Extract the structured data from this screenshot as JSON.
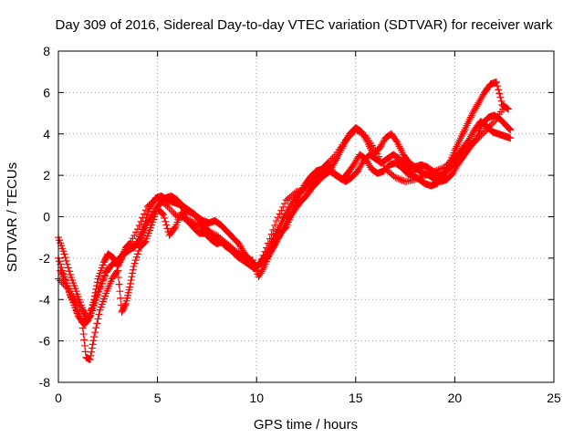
{
  "chart_data": {
    "type": "scatter",
    "title": "Day 309 of 2016, Sidereal Day-to-day VTEC variation (SDTVAR) for receiver wark",
    "xlabel": "GPS time / hours",
    "ylabel": "SDTVAR / TECUs",
    "xlim": [
      0,
      25
    ],
    "ylim": [
      -8,
      8
    ],
    "xticks": [
      0,
      5,
      10,
      15,
      20,
      25
    ],
    "yticks": [
      -8,
      -6,
      -4,
      -2,
      0,
      2,
      4,
      6,
      8
    ],
    "grid": true,
    "marker": "+",
    "color": "#ff0000",
    "series": [
      {
        "x": [
          0.0,
          0.3,
          0.6,
          0.9,
          1.2,
          1.4,
          1.6,
          1.8,
          2.0,
          2.3,
          2.5,
          2.8,
          3.0,
          3.2,
          3.4,
          3.6,
          3.8,
          4.0,
          4.3,
          4.6,
          4.9,
          5.2,
          5.5,
          5.8,
          6.1,
          6.4,
          6.7,
          7.0,
          7.3,
          7.6,
          7.9,
          8.2,
          8.5,
          8.8,
          9.1,
          9.4,
          9.7,
          10.0,
          10.3,
          10.6,
          10.9,
          11.2,
          11.5,
          11.8,
          12.1,
          12.4,
          12.7,
          13.0,
          13.3,
          13.6,
          13.9,
          14.2,
          14.5,
          14.8,
          15.1,
          15.4,
          15.7,
          16.0,
          16.3,
          16.6,
          16.9,
          17.2,
          17.5,
          17.8,
          18.1,
          18.4,
          18.7,
          19.0,
          19.3,
          19.6,
          19.9,
          20.2,
          20.5,
          20.8,
          21.1,
          21.4,
          21.7,
          22.0,
          22.3,
          22.6,
          22.8
        ],
        "y": [
          -1.0,
          -1.8,
          -2.8,
          -3.6,
          -4.4,
          -5.0,
          -4.8,
          -4.0,
          -3.0,
          -2.2,
          -1.8,
          -2.0,
          -2.4,
          -2.0,
          -1.5,
          -1.3,
          -1.5,
          -1.2,
          -0.5,
          0.4,
          0.9,
          1.0,
          0.8,
          0.7,
          0.6,
          0.3,
          0.2,
          0.0,
          -0.2,
          -0.3,
          -0.2,
          -0.4,
          -0.7,
          -1.0,
          -1.3,
          -1.8,
          -2.1,
          -2.4,
          -2.2,
          -1.9,
          -1.4,
          -0.8,
          -0.5,
          0.2,
          0.9,
          1.5,
          1.9,
          2.2,
          2.3,
          2.6,
          2.1,
          1.9,
          1.7,
          1.9,
          2.2,
          2.7,
          3.0,
          2.8,
          2.6,
          2.8,
          3.0,
          2.8,
          2.5,
          2.3,
          2.3,
          2.1,
          2.0,
          1.8,
          1.7,
          1.8,
          2.1,
          2.6,
          3.0,
          3.4,
          3.8,
          4.5,
          4.8,
          4.9,
          4.7,
          4.4,
          4.2
        ]
      },
      {
        "x": [
          0.1,
          0.4,
          0.7,
          1.0,
          1.3,
          1.5,
          1.8,
          2.1,
          2.4,
          2.7,
          3.0,
          3.3,
          3.6,
          3.9,
          4.2,
          4.5,
          4.8,
          5.1,
          5.4,
          5.7,
          6.0,
          6.3,
          6.6,
          6.9,
          7.2,
          7.5,
          7.8,
          8.1,
          8.4,
          8.7,
          9.0,
          9.3,
          9.6,
          9.9,
          10.2,
          10.5,
          10.8,
          11.1,
          11.4,
          11.7,
          12.0,
          12.3,
          12.6,
          12.9,
          13.2,
          13.5,
          13.8,
          14.1,
          14.4,
          14.7,
          15.0,
          15.3,
          15.6,
          15.9,
          16.2,
          16.5,
          16.8,
          17.1,
          17.4,
          17.7,
          18.0,
          18.3,
          18.6,
          18.9,
          19.2,
          19.5,
          19.8,
          20.1,
          20.4,
          20.7,
          21.0,
          21.3,
          21.6,
          21.9,
          22.2,
          22.5,
          22.8
        ],
        "y": [
          -2.6,
          -3.2,
          -4.0,
          -4.8,
          -5.2,
          -5.0,
          -4.3,
          -3.5,
          -2.7,
          -2.3,
          -2.1,
          -1.8,
          -1.6,
          -1.4,
          -1.0,
          -0.3,
          0.2,
          0.6,
          0.9,
          1.0,
          0.8,
          0.5,
          0.3,
          0.1,
          -0.3,
          -0.6,
          -0.9,
          -1.1,
          -1.4,
          -1.6,
          -1.9,
          -2.1,
          -2.3,
          -2.5,
          -2.2,
          -1.8,
          -1.2,
          -0.6,
          0.0,
          0.5,
          1.0,
          1.3,
          1.6,
          1.8,
          2.1,
          2.3,
          2.4,
          2.9,
          3.5,
          4.0,
          4.3,
          4.1,
          3.6,
          3.0,
          3.3,
          3.8,
          4.0,
          3.6,
          3.0,
          2.6,
          2.4,
          2.5,
          2.4,
          2.2,
          2.0,
          2.1,
          2.4,
          2.8,
          3.3,
          3.7,
          4.2,
          4.6,
          4.4,
          4.1,
          4.0,
          3.9,
          3.8
        ]
      },
      {
        "x": [
          0.0,
          0.3,
          0.6,
          0.9,
          1.2,
          1.4,
          1.6,
          1.8,
          2.1,
          2.4,
          2.7,
          3.0,
          3.2,
          3.4,
          3.6,
          3.8,
          4.1,
          4.4,
          4.7,
          5.0,
          5.3,
          5.6,
          5.9,
          6.2,
          6.5,
          6.8,
          7.1,
          7.4,
          7.7,
          8.0,
          8.3,
          8.6,
          8.9,
          9.2,
          9.5,
          9.8,
          10.1,
          10.4,
          10.7,
          11.0,
          11.3,
          11.6,
          11.9,
          12.2,
          12.5,
          12.8,
          13.1,
          13.4,
          13.7,
          14.0,
          14.3,
          14.6,
          14.9,
          15.2,
          15.5,
          15.8,
          16.1,
          16.4,
          16.7,
          17.0,
          17.3,
          17.6,
          17.9,
          18.2,
          18.5,
          18.8,
          19.1,
          19.4,
          19.7,
          20.0,
          20.3,
          20.6,
          20.9,
          21.2,
          21.5,
          21.8,
          22.1,
          22.4,
          22.7
        ],
        "y": [
          -2.0,
          -2.9,
          -3.8,
          -4.5,
          -5.1,
          -6.8,
          -6.9,
          -5.8,
          -4.5,
          -3.7,
          -3.0,
          -2.6,
          -4.6,
          -4.2,
          -3.4,
          -2.4,
          -1.5,
          -1.2,
          -0.4,
          0.4,
          0.1,
          -0.9,
          -0.5,
          0.2,
          -0.2,
          -0.5,
          -0.8,
          -0.8,
          -1.1,
          -1.3,
          -1.2,
          -1.5,
          -1.7,
          -1.9,
          -2.2,
          -2.1,
          -2.9,
          -2.4,
          -1.7,
          -1.2,
          -0.7,
          -0.1,
          0.3,
          0.7,
          1.0,
          1.4,
          1.7,
          2.0,
          2.2,
          2.0,
          1.8,
          2.1,
          2.5,
          3.0,
          2.8,
          2.3,
          2.1,
          2.2,
          2.5,
          2.6,
          2.4,
          2.1,
          2.0,
          1.8,
          1.6,
          1.5,
          1.6,
          1.9,
          2.5,
          3.2,
          3.8,
          4.4,
          5.0,
          5.5,
          6.0,
          6.4,
          6.5,
          5.4,
          5.2
        ]
      },
      {
        "x": [
          0.0,
          0.5,
          1.0,
          1.5,
          2.0,
          2.5,
          3.0,
          3.5,
          4.0,
          4.5,
          5.0,
          5.5,
          6.0,
          6.5,
          7.0,
          7.5,
          8.0,
          8.5,
          9.0,
          9.5,
          10.0,
          10.5,
          11.0,
          11.5,
          12.0,
          12.5,
          13.0,
          13.5,
          14.0,
          14.5,
          15.0,
          15.5,
          16.0,
          16.5,
          17.0,
          17.5,
          18.0,
          18.5,
          19.0,
          19.5,
          20.0,
          20.5,
          21.0,
          21.5,
          22.0,
          22.5
        ],
        "y": [
          -3.0,
          -3.5,
          -4.2,
          -4.9,
          -3.6,
          -2.5,
          -2.1,
          -1.5,
          -0.6,
          0.5,
          0.9,
          0.5,
          0.0,
          -0.1,
          -0.4,
          -0.7,
          -0.9,
          -1.3,
          -1.7,
          -2.0,
          -2.6,
          -1.5,
          -0.2,
          0.8,
          1.2,
          1.3,
          1.9,
          2.5,
          3.0,
          3.7,
          4.2,
          3.9,
          3.2,
          2.3,
          1.9,
          1.7,
          1.8,
          2.0,
          2.2,
          2.4,
          2.9,
          3.3,
          3.6,
          4.1,
          4.6,
          5.3
        ]
      }
    ]
  }
}
